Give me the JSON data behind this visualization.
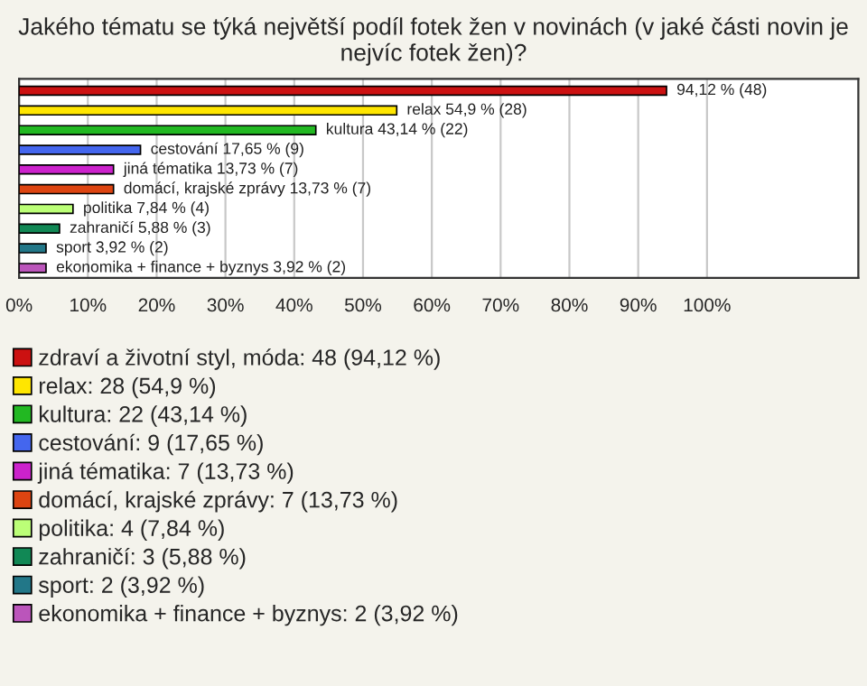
{
  "chart_data": {
    "type": "bar",
    "orientation": "horizontal",
    "title": "Jakého tématu se týká největší podíl fotek žen v novinách (v jaké části novin je nejvíc fotek žen)?",
    "categories": [
      null,
      null,
      null,
      null,
      null,
      null,
      null,
      null,
      null,
      null
    ],
    "series": [
      {
        "name": "zdraví a životní styl, móda: 48 (94,12 %)",
        "color": "#cc1111",
        "values": [
          94.12,
          null,
          null,
          null,
          null,
          null,
          null,
          null,
          null,
          null
        ],
        "value_labels": [
          "94,12 % (48)",
          null,
          null,
          null,
          null,
          null,
          null,
          null,
          null,
          null
        ]
      },
      {
        "name": "relax: 28 (54,9 %)",
        "color": "#ffe600",
        "values": [
          null,
          54.9,
          null,
          null,
          null,
          null,
          null,
          null,
          null,
          null
        ],
        "value_labels": [
          null,
          "relax 54,9 % (28)",
          null,
          null,
          null,
          null,
          null,
          null,
          null,
          null
        ]
      },
      {
        "name": "kultura: 22 (43,14 %)",
        "color": "#22b822",
        "values": [
          null,
          null,
          43.14,
          null,
          null,
          null,
          null,
          null,
          null,
          null
        ],
        "value_labels": [
          null,
          null,
          "kultura 43,14 % (22)",
          null,
          null,
          null,
          null,
          null,
          null,
          null
        ]
      },
      {
        "name": "cestování: 9 (17,65 %)",
        "color": "#4466ee",
        "values": [
          null,
          null,
          null,
          17.65,
          null,
          null,
          null,
          null,
          null,
          null
        ],
        "value_labels": [
          null,
          null,
          null,
          "cestování 17,65 % (9)",
          null,
          null,
          null,
          null,
          null,
          null
        ]
      },
      {
        "name": "jiná tématika: 7 (13,73 %)",
        "color": "#cc22cc",
        "values": [
          null,
          null,
          null,
          null,
          13.73,
          null,
          null,
          null,
          null,
          null
        ],
        "value_labels": [
          null,
          null,
          null,
          null,
          "jiná tématika 13,73 % (7)",
          null,
          null,
          null,
          null,
          null
        ]
      },
      {
        "name": "domácí, krajské zprávy: 7 (13,73 %)",
        "color": "#dd4411",
        "values": [
          null,
          null,
          null,
          null,
          null,
          13.73,
          null,
          null,
          null,
          null
        ],
        "value_labels": [
          null,
          null,
          null,
          null,
          null,
          "domácí, krajské zprávy 13,73 % (7)",
          null,
          null,
          null,
          null
        ]
      },
      {
        "name": "politika: 4 (7,84 %)",
        "color": "#bbff77",
        "values": [
          null,
          null,
          null,
          null,
          null,
          null,
          7.84,
          null,
          null,
          null
        ],
        "value_labels": [
          null,
          null,
          null,
          null,
          null,
          null,
          "politika 7,84 % (4)",
          null,
          null,
          null
        ]
      },
      {
        "name": "zahraničí: 3 (5,88 %)",
        "color": "#118855",
        "values": [
          null,
          null,
          null,
          null,
          null,
          null,
          null,
          5.88,
          null,
          null
        ],
        "value_labels": [
          null,
          null,
          null,
          null,
          null,
          null,
          null,
          "zahraničí 5,88 % (3)",
          null,
          null
        ]
      },
      {
        "name": "sport: 2 (3,92 %)",
        "color": "#227788",
        "values": [
          null,
          null,
          null,
          null,
          null,
          null,
          null,
          null,
          3.92,
          null
        ],
        "value_labels": [
          null,
          null,
          null,
          null,
          null,
          null,
          null,
          null,
          "sport 3,92 % (2)",
          null
        ]
      },
      {
        "name": "ekonomika + finance + byznys: 2 (3,92 %)",
        "color": "#bb55bb",
        "values": [
          null,
          null,
          null,
          null,
          null,
          null,
          null,
          null,
          null,
          3.92
        ],
        "value_labels": [
          null,
          null,
          null,
          null,
          null,
          null,
          null,
          null,
          null,
          "ekonomika + finance + byznys 3,92 % (2)"
        ]
      }
    ],
    "xlim": [
      0,
      122
    ],
    "xticks": [
      {
        "value": 0,
        "label": "0%"
      },
      {
        "value": 10,
        "label": "10%"
      },
      {
        "value": 20,
        "label": "20%"
      },
      {
        "value": 30,
        "label": "30%"
      },
      {
        "value": 40,
        "label": "40%"
      },
      {
        "value": 50,
        "label": "50%"
      },
      {
        "value": 60,
        "label": "60%"
      },
      {
        "value": 70,
        "label": "70%"
      },
      {
        "value": 80,
        "label": "80%"
      },
      {
        "value": 90,
        "label": "90%"
      },
      {
        "value": 100,
        "label": "100%"
      }
    ],
    "grid": "x",
    "legend": "bottom"
  }
}
